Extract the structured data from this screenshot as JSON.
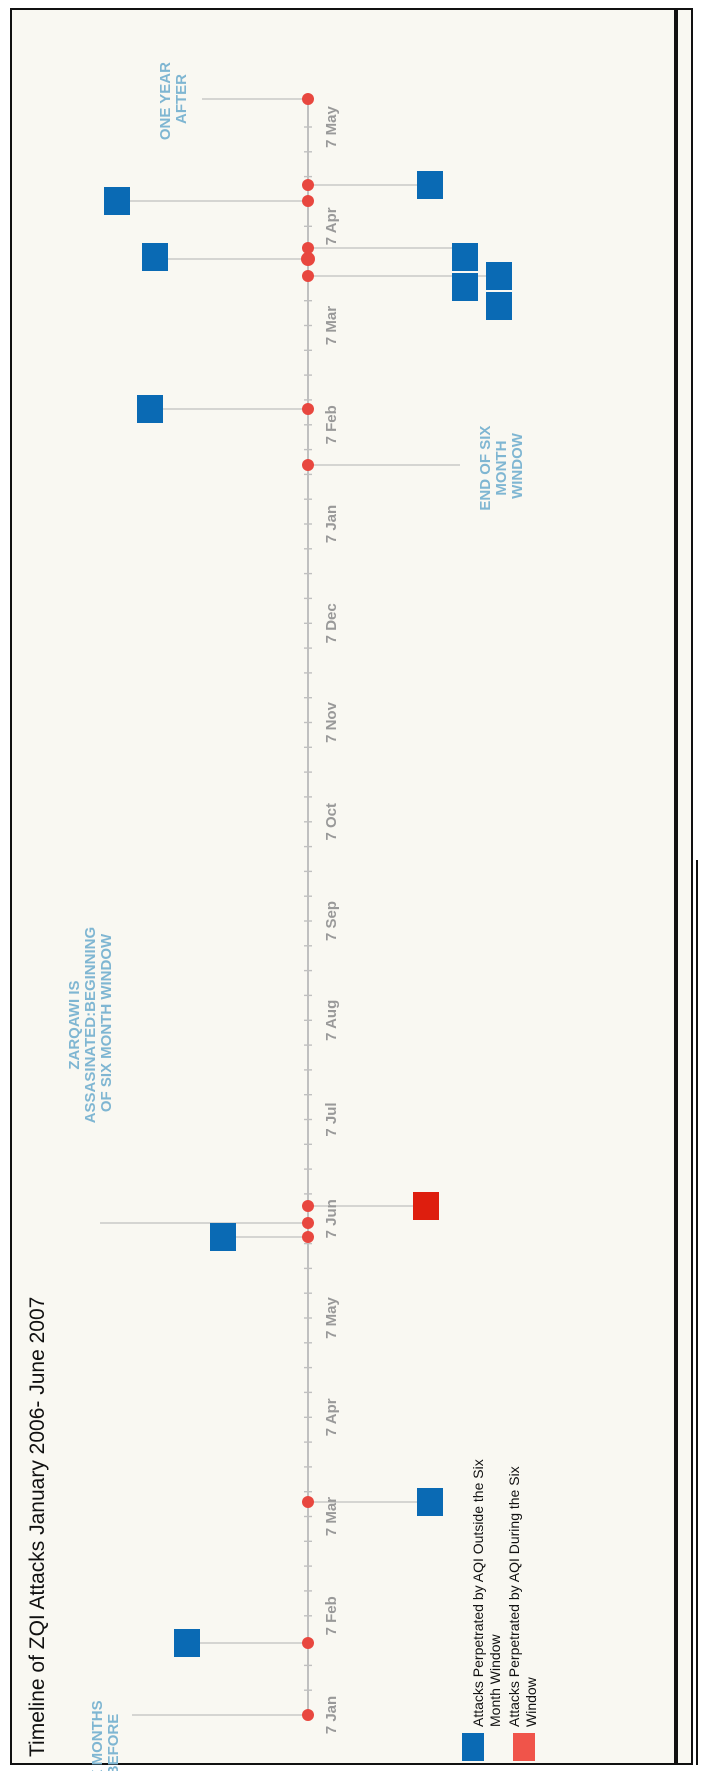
{
  "title": "Timeline of ZQI Attacks January 2006- June 2007",
  "colors": {
    "axis": "#c0c0c0",
    "event_dot": "#e8473f",
    "outside_window": "#0a6ab4",
    "during_window": "#de1e0e",
    "annotation": "#7fb6d2",
    "tick_label": "#999999",
    "background": "#f9f8f2"
  },
  "axis": {
    "tick_labels": [
      "7 Jan",
      "7 Feb",
      "7 Mar",
      "7 Apr",
      "7 May",
      "7 Jun",
      "7 Jul",
      "7 Aug",
      "7 Sep",
      "7 Oct",
      "7 Nov",
      "7 Dec",
      "7 Jan",
      "7 Feb",
      "7 Mar",
      "7 Apr",
      "7 May"
    ]
  },
  "annotations": {
    "six_months_before": [
      "SIX MONTHS",
      "BEFORE"
    ],
    "zarqawi": [
      "ZARQAWI IS",
      "ASSASINATED:BEGINNING",
      "OF SIX MONTH WINDOW"
    ],
    "end_six_month": [
      "END OF SIX",
      "MONTH",
      "WINDOW"
    ],
    "one_year_after": [
      "ONE YEAR",
      "AFTER"
    ]
  },
  "legend": {
    "outside": [
      "Attacks Perpetrated by AQI Outside the Six",
      "Month Window"
    ],
    "during": [
      "Attacks Perpetrated by AQI During the Six",
      "Window"
    ]
  }
}
